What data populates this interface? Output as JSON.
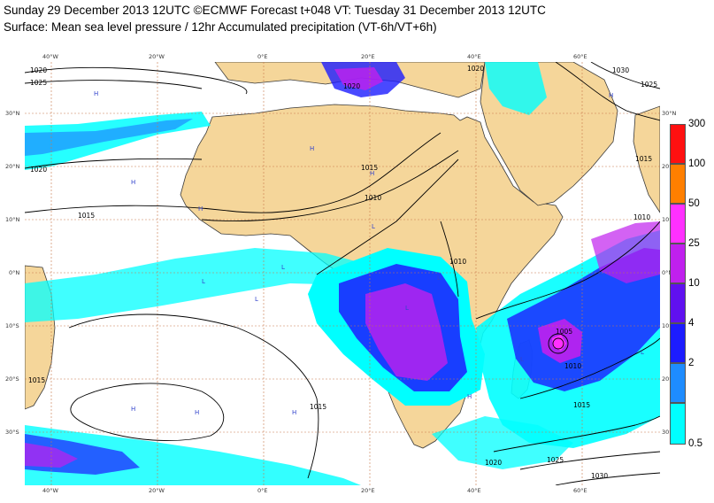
{
  "header": {
    "line1": "Sunday 29 December 2013 12UTC ©ECMWF Forecast t+048 VT: Tuesday 31 December 2013 12UTC",
    "line2": "Surface: Mean sea level pressure / 12hr Accumulated precipitation (VT-6h/VT+6h)"
  },
  "map": {
    "lon_labels": [
      "40°W",
      "20°W",
      "0°E",
      "20°E",
      "40°E",
      "60°E"
    ],
    "lat_labels": [
      "30°N",
      "20°N",
      "10°N",
      "0°N",
      "10°S",
      "20°S",
      "30°S"
    ],
    "right_lat_labels": [
      "30°N",
      "20°N",
      "10°N",
      "0°N",
      "10°S",
      "20°S",
      "30°S"
    ],
    "contour_labels": [
      "1020",
      "1025",
      "1020",
      "1015",
      "1015",
      "1010",
      "1010",
      "1005",
      "1010",
      "1010",
      "1015",
      "1015",
      "1015",
      "1020",
      "1025",
      "1030",
      "1030",
      "1025",
      "1015",
      "1020",
      "1020"
    ],
    "pressure_centers": [
      "H",
      "H",
      "H",
      "H",
      "H",
      "H",
      "L",
      "L",
      "L",
      "L",
      "L",
      "H",
      "H",
      "H",
      "H",
      "L",
      "L",
      "L",
      "L"
    ],
    "colors": {
      "land": "#f5d69a",
      "ocean": "#ffffff",
      "border": "#3a3a3a",
      "grid": "#c8784a"
    }
  },
  "legend": {
    "items": [
      {
        "label": "300",
        "color": "#ff1010"
      },
      {
        "label": "100",
        "color": "#ff7f00"
      },
      {
        "label": "50",
        "color": "#ff30ff"
      },
      {
        "label": "25",
        "color": "#c020ee"
      },
      {
        "label": "10",
        "color": "#6010f0"
      },
      {
        "label": "4",
        "color": "#1c1cff"
      },
      {
        "label": "2",
        "color": "#1e8cff"
      },
      {
        "label": "0.5",
        "color": "#00ffff"
      }
    ]
  }
}
